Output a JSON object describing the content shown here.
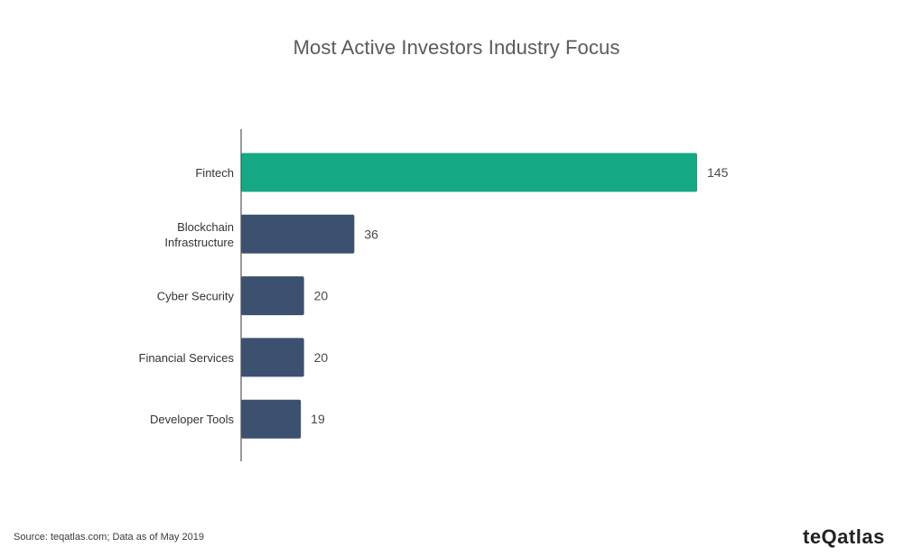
{
  "title": "Most Active Investors Industry Focus",
  "source": "Source: teqatlas.com; Data as of May 2019",
  "logo_text": "teQatlas",
  "colors": {
    "highlight": "#14a884",
    "default": "#3c5070",
    "axis": "#555555"
  },
  "chart_data": {
    "type": "bar",
    "orientation": "horizontal",
    "title": "Most Active Investors Industry Focus",
    "categories": [
      [
        "Fintech"
      ],
      [
        "Blockchain",
        "Infrastructure"
      ],
      [
        "Cyber Security"
      ],
      [
        "Financial Services"
      ],
      [
        "Developer Tools"
      ]
    ],
    "values": [
      145,
      36,
      20,
      20,
      19
    ],
    "highlight_index": 0,
    "xlim": [
      0,
      145
    ],
    "grid": false,
    "legend": "none",
    "data_labels": true
  }
}
